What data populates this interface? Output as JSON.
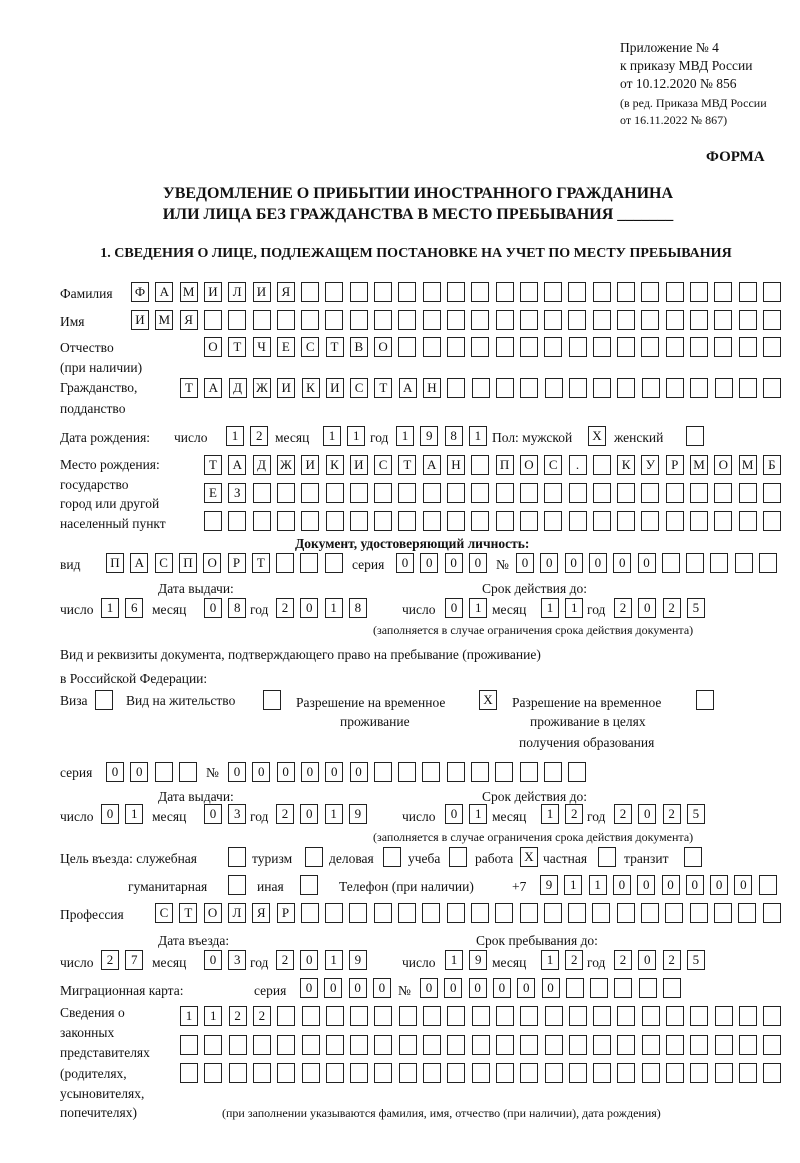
{
  "header": {
    "line1": "Приложение № 4",
    "line2": "к приказу МВД России",
    "line3": "от 10.12.2020 № 856",
    "line4": "(в ред. Приказа МВД России",
    "line5": "от 16.11.2022 № 867)",
    "forma": "ФОРМА"
  },
  "title": {
    "line1": "УВЕДОМЛЕНИЕ О ПРИБЫТИИ ИНОСТРАННОГО ГРАЖДАНИНА",
    "line2": "ИЛИ ЛИЦА БЕЗ ГРАЖДАНСТВА В МЕСТО ПРЕБЫВАНИЯ _______"
  },
  "section1": "1. СВЕДЕНИЯ О ЛИЦЕ, ПОДЛЕЖАЩЕМ ПОСТАНОВКЕ НА УЧЕТ ПО МЕСТУ ПРЕБЫВАНИЯ",
  "labels": {
    "surname": "Фамилия",
    "name": "Имя",
    "patronymic1": "Отчество",
    "patronymic2": "(при наличии)",
    "citizenship1": "Гражданство,",
    "citizenship2": "подданство",
    "dob": "Дата рождения:",
    "day": "число",
    "month": "месяц",
    "year": "год",
    "sex": "Пол: мужской",
    "female": "женский",
    "birthplace1": "Место рождения:",
    "birthplace2": "государство",
    "birthplace3": "город или другой",
    "birthplace4": "населенный пункт",
    "id_doc": "Документ, удостоверяющий личность:",
    "kind": "вид",
    "series": "серия",
    "number": "№",
    "issue_date": "Дата выдачи:",
    "valid_until": "Срок действия до:",
    "valid_note": "(заполняется в случае ограничения срока действия документа)",
    "permit1": "Вид и реквизиты документа, подтверждающего право на пребывание (проживание)",
    "permit2": "в Российской Федерации:",
    "visa": "Виза",
    "residence": "Вид на жительство",
    "trp1": "Разрешение на временное",
    "trp2": "проживание",
    "trpe1": "Разрешение на временное",
    "trpe2": "проживание в целях",
    "trpe3": "получения образования",
    "purpose": "Цель въезда: служебная",
    "tourism": "туризм",
    "business": "деловая",
    "study": "учеба",
    "work": "работа",
    "private": "частная",
    "transit": "транзит",
    "humanitarian": "гуманитарная",
    "other": "иная",
    "phone": "Телефон (при наличии)",
    "phone_prefix": "+7",
    "profession": "Профессия",
    "entry_date": "Дата въезда:",
    "stay_until": "Срок пребывания до:",
    "migration": "Миграционная карта:",
    "reps1": "Сведения о",
    "reps2": "законных",
    "reps3": "представителях",
    "reps4": "(родителях,",
    "reps5": "усыновителях,",
    "reps6": "попечителях)",
    "reps_note": "(при заполнении указываются фамилия, имя, отчество (при наличии), дата рождения)"
  },
  "values": {
    "surname": "ФАМИЛИЯ",
    "name": "ИМЯ",
    "patronymic": "ОТЧЕСТВО",
    "citizenship": "ТАДЖИКИСТАН",
    "dob_day": "12",
    "dob_month": "11",
    "dob_year": "1981",
    "sex_male": "X",
    "sex_female": "",
    "birthplace1": "ТАДЖИКИСТАН ПОС. КУРМОМБ",
    "birthplace2": "ЕЗ",
    "birthplace3": "",
    "doc_kind": "ПАСПОРТ",
    "doc_series": "0000",
    "doc_number": "000000",
    "doc_issue_day": "16",
    "doc_issue_month": "08",
    "doc_issue_year": "2018",
    "doc_valid_day": "01",
    "doc_valid_month": "11",
    "doc_valid_year": "2025",
    "visa": "",
    "residence": "",
    "trp": "X",
    "trpe": "",
    "permit_series": "00",
    "permit_number": "000000",
    "permit_issue_day": "01",
    "permit_issue_month": "03",
    "permit_issue_year": "2019",
    "permit_valid_day": "01",
    "permit_valid_month": "12",
    "permit_valid_year": "2025",
    "p_official": "",
    "p_tourism": "",
    "p_business": "",
    "p_study": "",
    "p_work": "X",
    "p_private": "",
    "p_transit": "",
    "p_humanitarian": "",
    "p_other": "",
    "phone": "911000000",
    "profession": "СТОЛЯР",
    "entry_day": "27",
    "entry_month": "03",
    "entry_year": "2019",
    "stay_day": "19",
    "stay_month": "12",
    "stay_year": "2025",
    "mig_series": "0000",
    "mig_number": "000000",
    "reps1": "1122",
    "reps2": "",
    "reps3": ""
  }
}
